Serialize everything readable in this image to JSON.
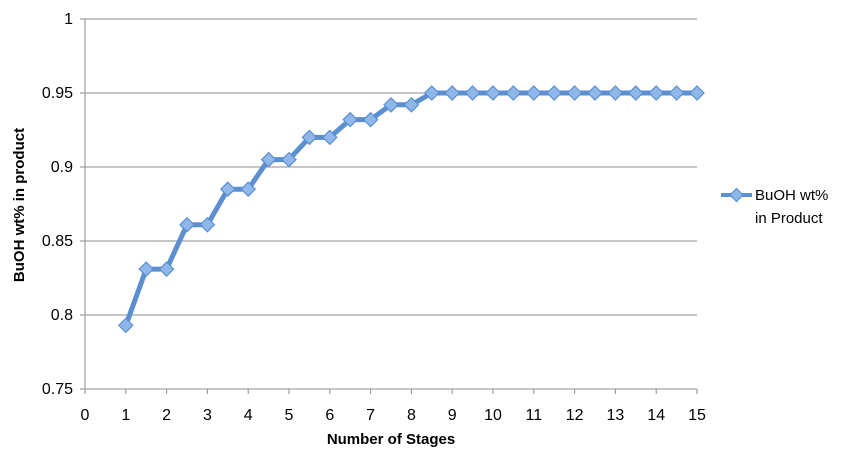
{
  "chart_data": {
    "type": "line",
    "title": "",
    "xlabel": "Number of Stages",
    "ylabel": "BuOH wt% in product",
    "xlim": [
      0,
      15
    ],
    "ylim": [
      0.75,
      1
    ],
    "x_ticks": [
      "0",
      "1",
      "2",
      "3",
      "4",
      "5",
      "6",
      "7",
      "8",
      "9",
      "10",
      "11",
      "12",
      "13",
      "14",
      "15"
    ],
    "y_ticks": [
      "0.75",
      "0.8",
      "0.85",
      "0.9",
      "0.95",
      "1"
    ],
    "grid": "horizontal",
    "legend_position": "right",
    "series": [
      {
        "name": "BuOH wt% in Product",
        "legend_lines": [
          "BuOH wt%",
          "in Product"
        ],
        "color": "#5b8fd0",
        "marker_color": "#8fb7ea",
        "marker": "diamond",
        "x": [
          1,
          1.5,
          2,
          2.5,
          3,
          3.5,
          4,
          4.5,
          5,
          5.5,
          6,
          6.5,
          7,
          7.5,
          8,
          8.5,
          9,
          9.5,
          10,
          10.5,
          11,
          11.5,
          12,
          12.5,
          13,
          13.5,
          14,
          14.5,
          15
        ],
        "y": [
          0.793,
          0.831,
          0.831,
          0.861,
          0.861,
          0.885,
          0.885,
          0.905,
          0.905,
          0.92,
          0.92,
          0.932,
          0.932,
          0.942,
          0.942,
          0.95,
          0.95,
          0.95,
          0.95,
          0.95,
          0.95,
          0.95,
          0.95,
          0.95,
          0.95,
          0.95,
          0.95,
          0.95,
          0.95
        ]
      }
    ]
  }
}
